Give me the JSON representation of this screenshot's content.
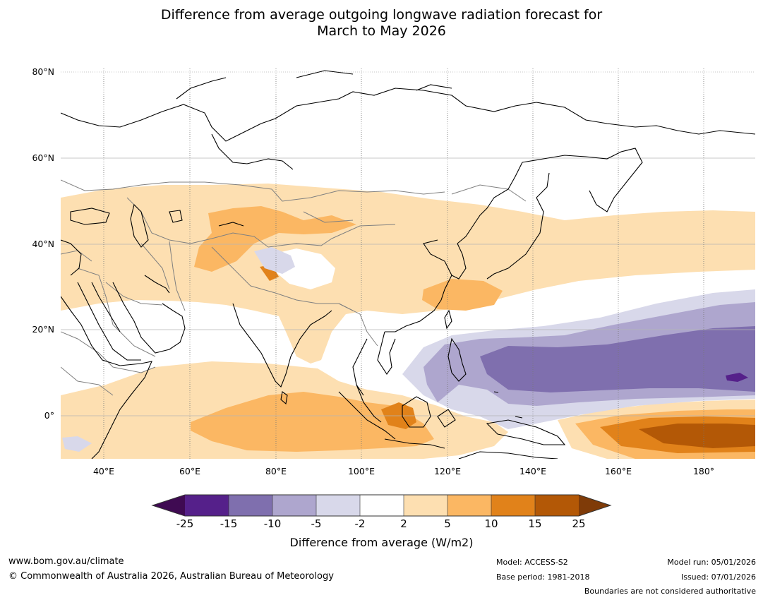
{
  "title": {
    "line1": "Difference from average outgoing longwave radiation forecast for",
    "line2": "March to May 2026"
  },
  "map": {
    "lat_labels": [
      "80°N",
      "60°N",
      "40°N",
      "20°N",
      "0°"
    ],
    "lon_labels": [
      "40°E",
      "60°E",
      "80°E",
      "100°E",
      "120°E",
      "140°E",
      "160°E",
      "180°"
    ],
    "extent": {
      "lon_min": 30,
      "lon_max": 192,
      "lat_min": -10,
      "lat_max": 81
    }
  },
  "colorbar": {
    "ticks": [
      "-25",
      "-15",
      "-10",
      "-5",
      "-2",
      "2",
      "5",
      "10",
      "15",
      "25"
    ],
    "colors": [
      "#3f0a52",
      "#55208a",
      "#7f6fae",
      "#aea6ce",
      "#d8d8ea",
      "#ffffff",
      "#fddfb1",
      "#fbb763",
      "#e1821a",
      "#b35806",
      "#7f3b08"
    ],
    "label": "Difference from average (W/m2)"
  },
  "footer": {
    "url": "www.bom.gov.au/climate",
    "copyright": "© Commonwealth of Australia 2026, Australian Bureau of Meteorology",
    "model": "Model: ACCESS-S2",
    "base_period": "Base period: 1981-2018",
    "model_run": "Model run: 05/01/2026",
    "issued": "Issued: 07/01/2026",
    "disclaimer": "Boundaries are not considered authoritative"
  }
}
